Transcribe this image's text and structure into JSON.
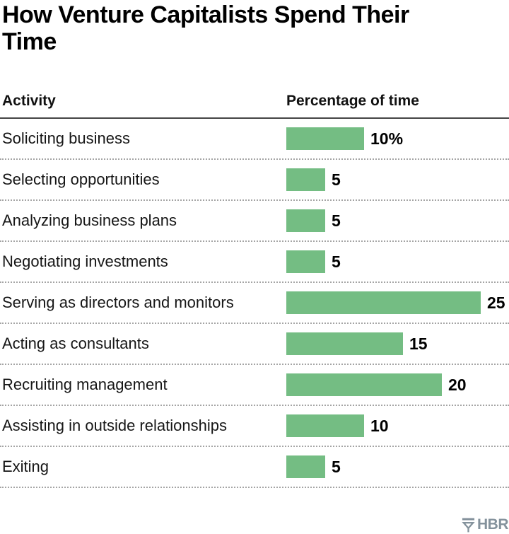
{
  "title": "How Venture Capitalists Spend Their Time",
  "table": {
    "activity_header": "Activity",
    "value_header": "Percentage of time"
  },
  "chart_data": {
    "type": "bar",
    "orientation": "horizontal",
    "title": "How Venture Capitalists Spend Their Time",
    "xlabel": "Percentage of time",
    "ylabel": "Activity",
    "xlim": [
      0,
      25
    ],
    "grid": false,
    "bar_color": "#74bd83",
    "categories": [
      "Soliciting business",
      "Selecting opportunities",
      "Analyzing business plans",
      "Negotiating investments",
      "Serving as directors and monitors",
      "Acting as consultants",
      "Recruiting management",
      "Assisting in outside relationships",
      "Exiting"
    ],
    "values": [
      10,
      5,
      5,
      5,
      25,
      15,
      20,
      10,
      5
    ],
    "value_labels": [
      "10%",
      "5",
      "5",
      "5",
      "25",
      "15",
      "20",
      "10",
      "5"
    ]
  },
  "footer": {
    "brand": "HBR",
    "logo_icon": "hbr-shield-icon",
    "brand_color": "#84929c"
  }
}
